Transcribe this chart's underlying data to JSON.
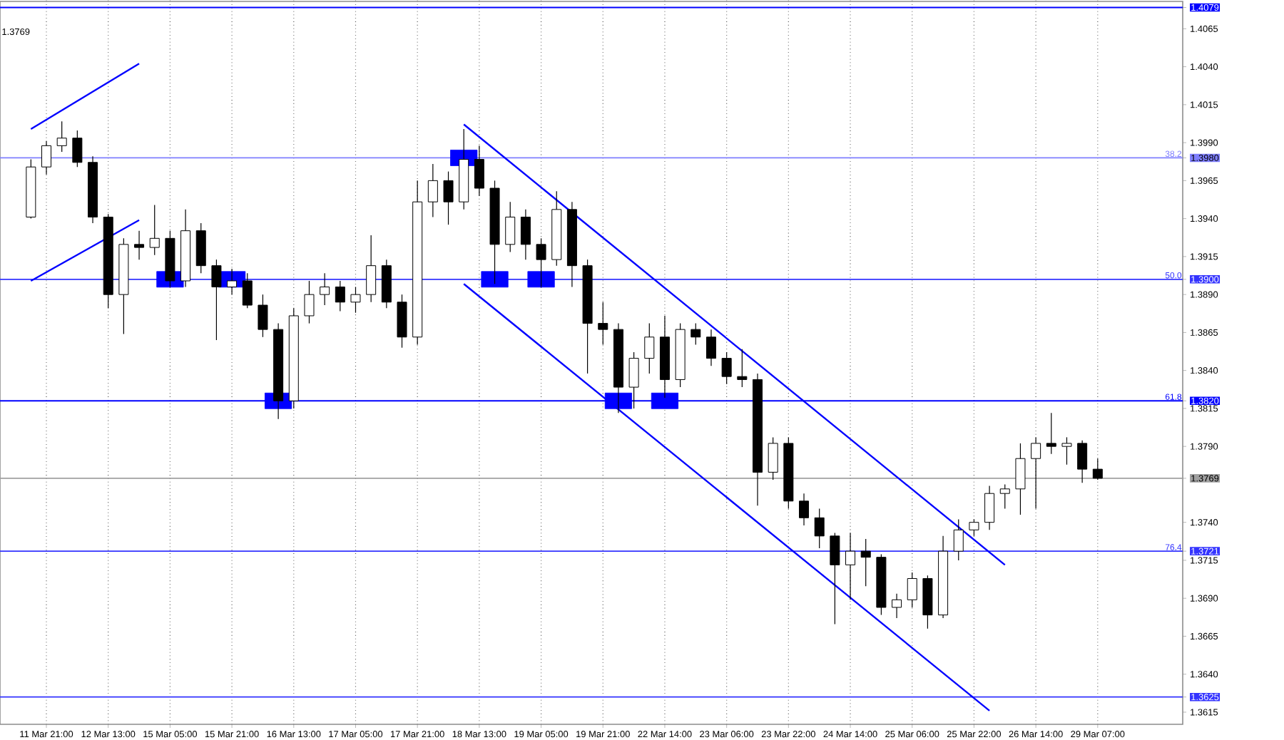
{
  "chart_data": {
    "type": "candlestick",
    "categories": [
      null,
      "11 Mar 21:00",
      null,
      null,
      null,
      "12 Mar 13:00",
      null,
      null,
      null,
      "15 Mar 05:00",
      null,
      null,
      null,
      "15 Mar 21:00",
      null,
      null,
      null,
      "16 Mar 13:00",
      null,
      null,
      null,
      "17 Mar 05:00",
      null,
      null,
      null,
      "17 Mar 21:00",
      null,
      null,
      null,
      "18 Mar 13:00",
      null,
      null,
      null,
      "19 Mar 05:00",
      null,
      null,
      null,
      "19 Mar 21:00",
      null,
      null,
      null,
      "22 Mar 14:00",
      null,
      null,
      null,
      "23 Mar 06:00",
      null,
      null,
      null,
      "23 Mar 22:00",
      null,
      null,
      null,
      "24 Mar 14:00",
      null,
      null,
      null,
      "25 Mar 06:00",
      null,
      null,
      null,
      "25 Mar 22:00",
      null,
      null,
      null,
      "26 Mar 14:00",
      null,
      null,
      null,
      "29 Mar 07:00",
      null,
      null,
      null,
      null,
      null
    ],
    "ohlc": [
      [
        1.3941,
        1.3979,
        1.394,
        1.3974
      ],
      [
        1.3974,
        1.3991,
        1.3969,
        1.3988
      ],
      [
        1.3988,
        1.4004,
        1.3984,
        1.3993
      ],
      [
        1.3993,
        1.3998,
        1.3974,
        1.3977
      ],
      [
        1.3977,
        1.3981,
        1.3937,
        1.3941
      ],
      [
        1.3941,
        1.3943,
        1.3881,
        1.389
      ],
      [
        1.389,
        1.3927,
        1.3864,
        1.3923
      ],
      [
        1.3923,
        1.3932,
        1.3913,
        1.3921
      ],
      [
        1.3921,
        1.3949,
        1.3916,
        1.3927
      ],
      [
        1.3927,
        1.3932,
        1.3895,
        1.3899
      ],
      [
        1.3899,
        1.3946,
        1.3895,
        1.3932
      ],
      [
        1.3932,
        1.3937,
        1.3904,
        1.3909
      ],
      [
        1.3909,
        1.3913,
        1.386,
        1.3895
      ],
      [
        1.3895,
        1.3907,
        1.389,
        1.3899
      ],
      [
        1.3899,
        1.3904,
        1.3881,
        1.3883
      ],
      [
        1.3883,
        1.389,
        1.3862,
        1.3867
      ],
      [
        1.3867,
        1.3871,
        1.3808,
        1.382
      ],
      [
        1.382,
        1.3881,
        1.3815,
        1.3876
      ],
      [
        1.3876,
        1.3899,
        1.3871,
        1.389
      ],
      [
        1.389,
        1.3904,
        1.3883,
        1.3895
      ],
      [
        1.3895,
        1.3899,
        1.3879,
        1.3885
      ],
      [
        1.3885,
        1.3895,
        1.3878,
        1.389
      ],
      [
        1.389,
        1.3929,
        1.3885,
        1.3909
      ],
      [
        1.3909,
        1.3913,
        1.3881,
        1.3885
      ],
      [
        1.3885,
        1.389,
        1.3855,
        1.3862
      ],
      [
        1.3862,
        1.3965,
        1.3857,
        1.3951
      ],
      [
        1.3951,
        1.3976,
        1.3941,
        1.3965
      ],
      [
        1.3965,
        1.3971,
        1.3936,
        1.3951
      ],
      [
        1.3951,
        1.3999,
        1.3946,
        1.3979
      ],
      [
        1.3979,
        1.3988,
        1.3955,
        1.396
      ],
      [
        1.396,
        1.3965,
        1.3897,
        1.3923
      ],
      [
        1.3923,
        1.3951,
        1.3918,
        1.3941
      ],
      [
        1.3941,
        1.3946,
        1.3913,
        1.3923
      ],
      [
        1.3923,
        1.3927,
        1.3895,
        1.3913
      ],
      [
        1.3913,
        1.3958,
        1.3909,
        1.3946
      ],
      [
        1.3946,
        1.3951,
        1.3895,
        1.3909
      ],
      [
        1.3909,
        1.3913,
        1.3838,
        1.3871
      ],
      [
        1.3871,
        1.3885,
        1.3857,
        1.3867
      ],
      [
        1.3867,
        1.3871,
        1.3812,
        1.3829
      ],
      [
        1.3829,
        1.3852,
        1.3815,
        1.3848
      ],
      [
        1.3848,
        1.3871,
        1.3838,
        1.3862
      ],
      [
        1.3862,
        1.3876,
        1.3822,
        1.3834
      ],
      [
        1.3834,
        1.3871,
        1.3829,
        1.3867
      ],
      [
        1.3867,
        1.3871,
        1.3857,
        1.3862
      ],
      [
        1.3862,
        1.3867,
        1.3843,
        1.3848
      ],
      [
        1.3848,
        1.3852,
        1.3831,
        1.3836
      ],
      [
        1.3836,
        1.3854,
        1.3829,
        1.3834
      ],
      [
        1.3834,
        1.3838,
        1.3751,
        1.3773
      ],
      [
        1.3773,
        1.3796,
        1.3768,
        1.3792
      ],
      [
        1.3792,
        1.3796,
        1.3749,
        1.3754
      ],
      [
        1.3754,
        1.3759,
        1.3738,
        1.3743
      ],
      [
        1.3743,
        1.3749,
        1.3723,
        1.3731
      ],
      [
        1.3731,
        1.3733,
        1.3673,
        1.3712
      ],
      [
        1.3712,
        1.3733,
        1.3689,
        1.3721
      ],
      [
        1.3721,
        1.3729,
        1.3698,
        1.3717
      ],
      [
        1.3717,
        1.3719,
        1.3679,
        1.3684
      ],
      [
        1.3684,
        1.3693,
        1.3677,
        1.3689
      ],
      [
        1.3689,
        1.3707,
        1.3684,
        1.3703
      ],
      [
        1.3703,
        1.3705,
        1.367,
        1.3679
      ],
      [
        1.3679,
        1.3731,
        1.3677,
        1.3721
      ],
      [
        1.3721,
        1.3742,
        1.3715,
        1.3735
      ],
      [
        1.3735,
        1.3742,
        1.3731,
        1.374
      ],
      [
        1.374,
        1.3764,
        1.3735,
        1.3759
      ],
      [
        1.3759,
        1.3765,
        1.3749,
        1.3762
      ],
      [
        1.3762,
        1.3792,
        1.3745,
        1.3782
      ],
      [
        1.3782,
        1.3796,
        1.3749,
        1.3792
      ],
      [
        1.3792,
        1.3812,
        1.3785,
        1.379
      ],
      [
        1.379,
        1.3796,
        1.3778,
        1.3792
      ],
      [
        1.3792,
        1.3794,
        1.3766,
        1.3775
      ],
      [
        1.3775,
        1.3782,
        1.3768,
        1.3769
      ],
      null,
      null,
      null,
      null,
      null
    ],
    "series": [
      {
        "type": "line",
        "color": "#0000ff",
        "values": [
          1.3999,
          null,
          null,
          null,
          null,
          null,
          null,
          1.4042,
          null,
          null,
          null,
          null,
          null,
          null,
          null,
          null,
          null,
          null,
          null,
          null,
          null,
          null,
          null,
          null,
          null,
          null,
          null,
          null,
          null,
          null,
          null,
          null,
          null,
          null,
          null,
          null,
          null,
          null,
          null,
          null,
          null,
          null,
          null,
          null,
          null,
          null,
          null,
          null,
          null,
          null,
          null,
          null,
          null,
          null,
          null,
          null,
          null,
          null,
          null,
          null,
          null,
          null,
          null,
          null,
          null,
          null,
          null,
          null,
          null,
          null,
          null,
          null,
          null,
          null,
          null
        ]
      },
      {
        "type": "line",
        "color": "#0000ff",
        "values": [
          1.3899,
          null,
          null,
          null,
          null,
          null,
          null,
          1.3939,
          null,
          null,
          null,
          null,
          null,
          null,
          null,
          null,
          null,
          null,
          null,
          null,
          null,
          null,
          null,
          null,
          null,
          null,
          null,
          null,
          null,
          null,
          null,
          null,
          null,
          null,
          null,
          null,
          null,
          null,
          null,
          null,
          null,
          null,
          null,
          null,
          null,
          null,
          null,
          null,
          null,
          null,
          null,
          null,
          null,
          null,
          null,
          null,
          null,
          null,
          null,
          null,
          null,
          null,
          null,
          null,
          null,
          null,
          null,
          null,
          null,
          null,
          null,
          null,
          null,
          null,
          null
        ]
      },
      {
        "type": "line",
        "color": "#0000ff",
        "values": [
          null,
          null,
          null,
          null,
          null,
          null,
          null,
          null,
          null,
          null,
          null,
          null,
          null,
          null,
          null,
          null,
          null,
          null,
          null,
          null,
          null,
          null,
          null,
          null,
          null,
          null,
          null,
          null,
          1.4002,
          null,
          null,
          null,
          null,
          null,
          null,
          null,
          null,
          null,
          null,
          null,
          null,
          null,
          null,
          null,
          null,
          null,
          null,
          null,
          null,
          null,
          null,
          null,
          null,
          null,
          null,
          null,
          null,
          null,
          null,
          null,
          null,
          null,
          null,
          1.3712,
          null,
          null,
          null,
          null,
          null,
          null,
          null,
          null,
          null,
          null,
          null
        ]
      },
      {
        "type": "line",
        "color": "#0000ff",
        "values": [
          null,
          null,
          null,
          null,
          null,
          null,
          null,
          null,
          null,
          null,
          null,
          null,
          null,
          null,
          null,
          null,
          null,
          null,
          null,
          null,
          null,
          null,
          null,
          null,
          null,
          null,
          null,
          null,
          1.3897,
          null,
          null,
          null,
          null,
          null,
          null,
          null,
          null,
          null,
          null,
          null,
          null,
          null,
          null,
          null,
          null,
          null,
          null,
          null,
          null,
          null,
          null,
          null,
          null,
          null,
          null,
          null,
          null,
          null,
          null,
          null,
          null,
          null,
          1.3616,
          null,
          null,
          null,
          null,
          null,
          null,
          null,
          null,
          null,
          null,
          null,
          null
        ]
      },
      {
        "type": "scatter",
        "marker": "square",
        "color": "#0000ff",
        "values": [
          null,
          null,
          null,
          null,
          null,
          null,
          null,
          null,
          null,
          1.39,
          null,
          null,
          null,
          1.39,
          null,
          null,
          1.382,
          null,
          null,
          null,
          null,
          null,
          null,
          null,
          null,
          null,
          null,
          null,
          1.398,
          null,
          1.39,
          null,
          null,
          1.39,
          null,
          null,
          null,
          null,
          1.382,
          null,
          null,
          1.382,
          null,
          null,
          null,
          null,
          null,
          null,
          null,
          null,
          null,
          null,
          null,
          null,
          null,
          null,
          null,
          null,
          null,
          null,
          null,
          null,
          null,
          null,
          null,
          null,
          null,
          null,
          null,
          null,
          null,
          null,
          null,
          null,
          null
        ]
      }
    ],
    "ylim": [
      1.3607,
      1.4083
    ],
    "yticks": [
      {
        "value": 1.4079,
        "label": "1.4079"
      },
      1.4065,
      {
        "value": 1.404,
        "label": "1.4040"
      },
      1.4015,
      {
        "value": 1.399,
        "label": "1.3990"
      },
      {
        "value": 1.398,
        "label": "1.3980"
      },
      1.3965,
      {
        "value": 1.394,
        "label": "1.3940"
      },
      1.3915,
      {
        "value": 1.39,
        "label": "1.3900"
      },
      {
        "value": 1.389,
        "label": "1.3890"
      },
      1.3865,
      {
        "value": 1.384,
        "label": "1.3840"
      },
      {
        "value": 1.382,
        "label": "1.3820"
      },
      1.3815,
      {
        "value": 1.379,
        "label": "1.3790"
      },
      {
        "value": 1.3769,
        "label": "1.3769"
      },
      {
        "value": 1.374,
        "label": "1.3740"
      },
      {
        "value": 1.3721,
        "label": "1.3721"
      },
      1.3715,
      {
        "value": 1.369,
        "label": "1.3690"
      },
      1.3665,
      {
        "value": 1.364,
        "label": "1.3640"
      },
      {
        "value": 1.3625,
        "label": "1.3625"
      },
      1.3615
    ],
    "ref_lines": [
      {
        "axis": "y",
        "value": 1.4079,
        "color": "#0000ff"
      },
      {
        "axis": "y",
        "value": 1.398,
        "color": "#7f7fff"
      },
      {
        "axis": "y",
        "value": 1.39,
        "color": "#3333ff"
      },
      {
        "axis": "y",
        "value": 1.382,
        "color": "#0000ff"
      },
      {
        "axis": "y",
        "value": 1.3769,
        "color": "#a0a0a0"
      },
      {
        "axis": "y",
        "value": 1.3721,
        "color": "#3333ff"
      },
      {
        "axis": "y",
        "value": 1.3625,
        "color": "#3333ff"
      }
    ],
    "grid": "x",
    "annotations": [
      "1.3769",
      {
        "text": "38.2",
        "y": 1.398
      },
      {
        "text": "50.0",
        "y": 1.39
      },
      {
        "text": "61.8",
        "y": 1.382
      },
      {
        "text": "76.4",
        "y": 1.3721
      }
    ]
  }
}
